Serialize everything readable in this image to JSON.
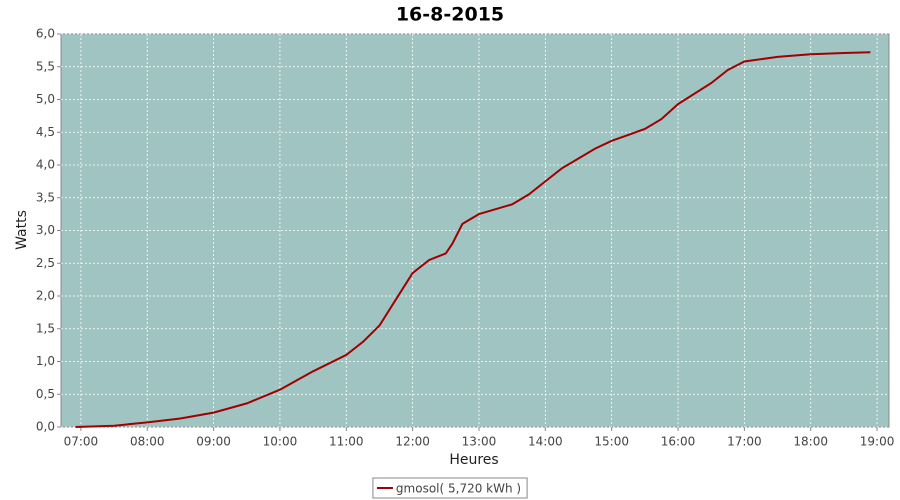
{
  "chart_data": {
    "type": "line",
    "title": "16-8-2015",
    "x_label": "Heures",
    "y_label": "Watts",
    "xlim": [
      6.7,
      19.18
    ],
    "ylim": [
      0,
      6
    ],
    "xticks": [
      {
        "value": 7,
        "label": "07:00"
      },
      {
        "value": 8,
        "label": "08:00"
      },
      {
        "value": 9,
        "label": "09:00"
      },
      {
        "value": 10,
        "label": "10:00"
      },
      {
        "value": 11,
        "label": "11:00"
      },
      {
        "value": 12,
        "label": "12:00"
      },
      {
        "value": 13,
        "label": "13:00"
      },
      {
        "value": 14,
        "label": "14:00"
      },
      {
        "value": 15,
        "label": "15:00"
      },
      {
        "value": 16,
        "label": "16:00"
      },
      {
        "value": 17,
        "label": "17:00"
      },
      {
        "value": 18,
        "label": "18:00"
      },
      {
        "value": 19,
        "label": "19:00"
      }
    ],
    "yticks": [
      {
        "value": 0,
        "label": "0,0"
      },
      {
        "value": 0.5,
        "label": "0,5"
      },
      {
        "value": 1,
        "label": "1,0"
      },
      {
        "value": 1.5,
        "label": "1,5"
      },
      {
        "value": 2,
        "label": "2,0"
      },
      {
        "value": 2.5,
        "label": "2,5"
      },
      {
        "value": 3,
        "label": "3,0"
      },
      {
        "value": 3.5,
        "label": "3,5"
      },
      {
        "value": 4,
        "label": "4,0"
      },
      {
        "value": 4.5,
        "label": "4,5"
      },
      {
        "value": 5,
        "label": "5,0"
      },
      {
        "value": 5.5,
        "label": "5,5"
      },
      {
        "value": 6,
        "label": "6,0"
      }
    ],
    "grid": true,
    "background": "#a0c4c2",
    "x": [
      6.92,
      7.5,
      8.0,
      8.5,
      9.0,
      9.5,
      10.0,
      10.5,
      11.0,
      11.25,
      11.5,
      11.75,
      12.0,
      12.25,
      12.5,
      12.6,
      12.75,
      13.0,
      13.5,
      13.75,
      14.0,
      14.25,
      14.5,
      14.75,
      15.0,
      15.5,
      15.75,
      16.0,
      16.5,
      16.75,
      17.0,
      17.5,
      18.0,
      18.5,
      18.9
    ],
    "series": [
      {
        "name": "gmosol( 5,720 kWh )",
        "color": "#a00000",
        "values": [
          0,
          0.02,
          0.07,
          0.13,
          0.22,
          0.36,
          0.57,
          0.85,
          1.1,
          1.3,
          1.55,
          1.95,
          2.35,
          2.55,
          2.65,
          2.8,
          3.1,
          3.25,
          3.4,
          3.55,
          3.75,
          3.95,
          4.1,
          4.25,
          4.37,
          4.55,
          4.7,
          4.93,
          5.25,
          5.45,
          5.58,
          5.65,
          5.69,
          5.71,
          5.72
        ]
      }
    ],
    "legend": "bottom"
  }
}
